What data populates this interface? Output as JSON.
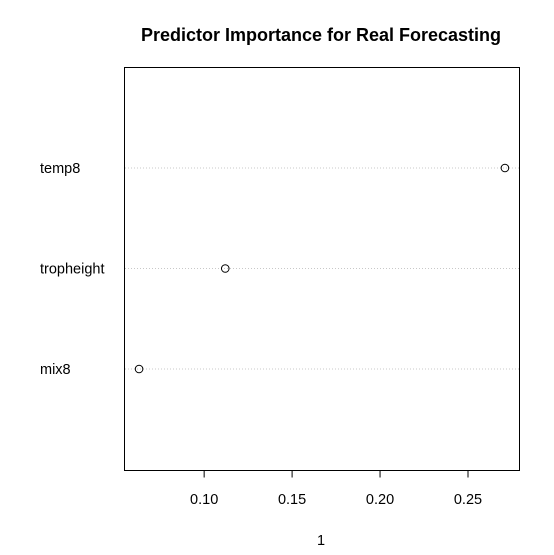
{
  "chart_data": {
    "type": "scatter",
    "subtype": "dotchart",
    "title": "Predictor Importance for Real Forecasting",
    "xlabel": "1",
    "ylabel": "",
    "categories": [
      "temp8",
      "tropheight",
      "mix8"
    ],
    "values": [
      0.271,
      0.112,
      0.063
    ],
    "xlim": [
      0.055,
      0.279
    ],
    "xticks": [
      0.1,
      0.15,
      0.2,
      0.25
    ],
    "xtick_labels": [
      "0.10",
      "0.15",
      "0.20",
      "0.25"
    ],
    "grid": "dotted horizontal guide lines per category",
    "marker": "open circle"
  }
}
